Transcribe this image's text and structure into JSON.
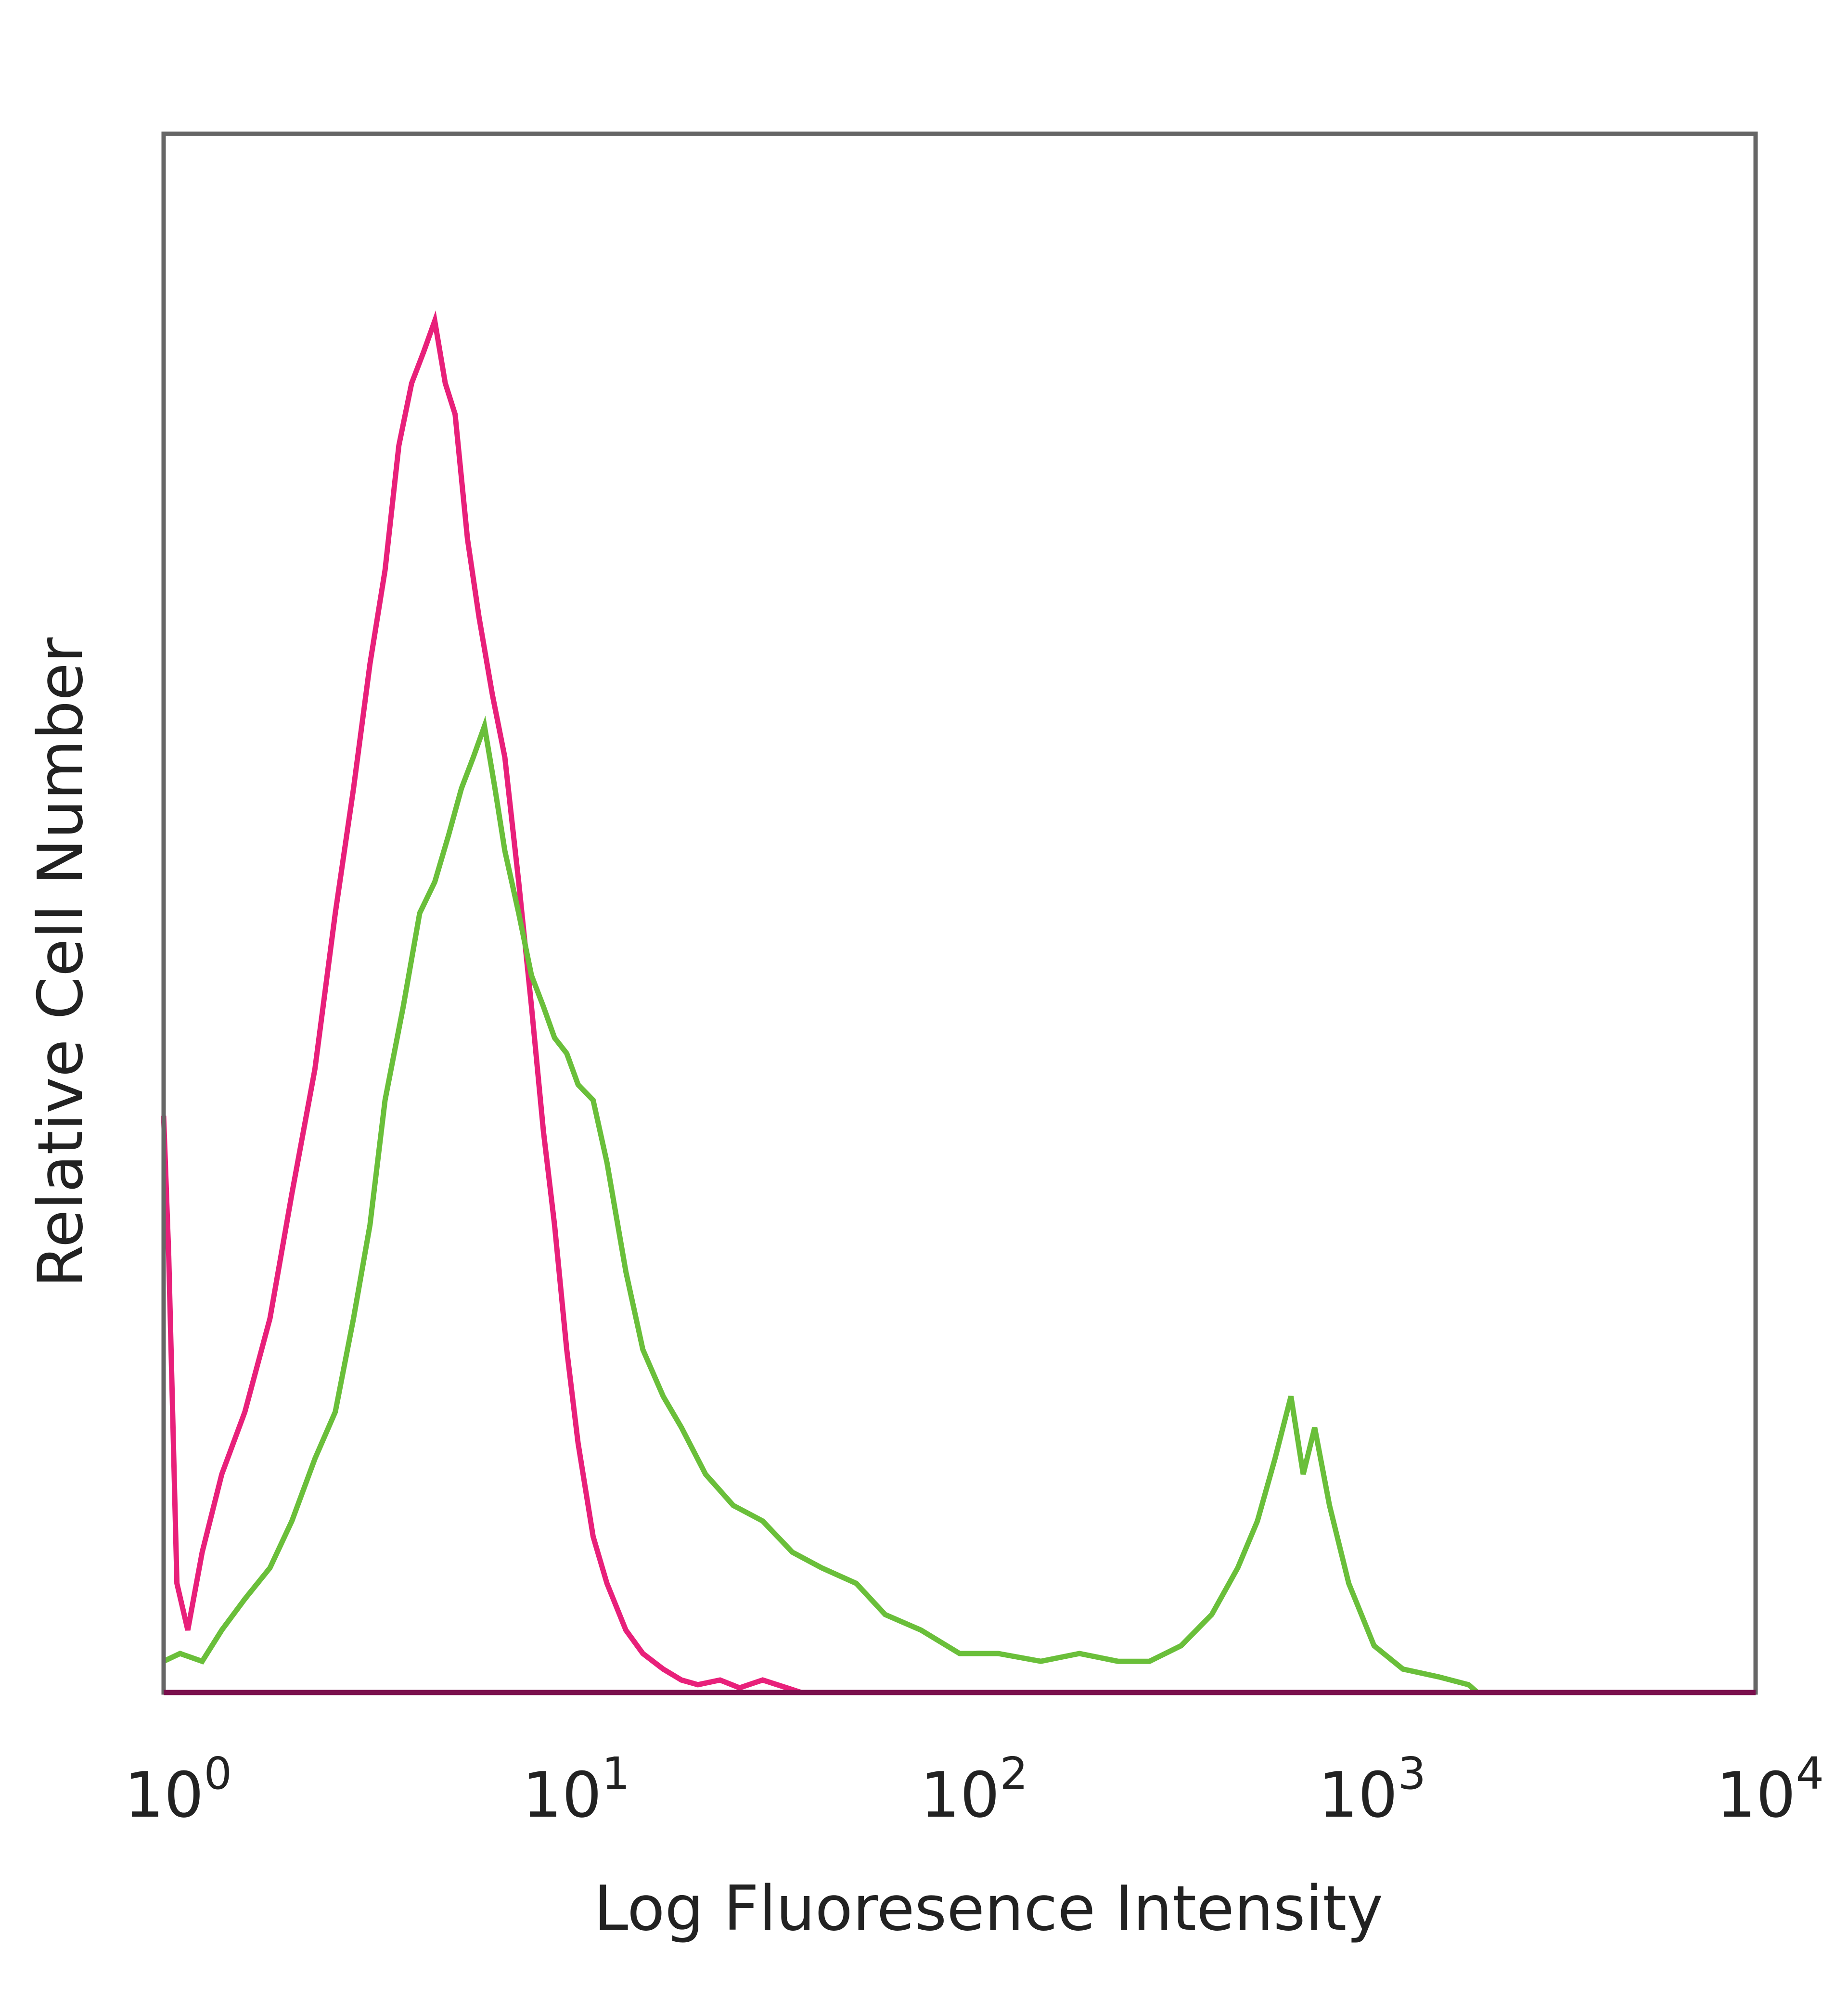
{
  "chart_data": {
    "type": "line",
    "title": "",
    "xlabel": "Log Fluoresence Intensity",
    "ylabel": "Relative Cell Number",
    "x_scale": "log",
    "xlim": [
      1,
      10000
    ],
    "ylim": [
      0,
      100
    ],
    "x_ticks": [
      {
        "value": 1,
        "base": "10",
        "exp": "0"
      },
      {
        "value": 10,
        "base": "10",
        "exp": "1"
      },
      {
        "value": 100,
        "base": "10",
        "exp": "2"
      },
      {
        "value": 1000,
        "base": "10",
        "exp": "3"
      },
      {
        "value": 10000,
        "base": "10",
        "exp": "4"
      }
    ],
    "grid": false,
    "legend": false,
    "series": [
      {
        "color": "#e8207a",
        "x": [
          1.0,
          1.03,
          1.08,
          1.15,
          1.25,
          1.4,
          1.6,
          1.85,
          2.1,
          2.4,
          2.7,
          3.0,
          3.3,
          3.6,
          3.9,
          4.2,
          4.5,
          4.8,
          5.1,
          5.4,
          5.8,
          6.2,
          6.7,
          7.2,
          7.8,
          8.4,
          9.0,
          9.6,
          10.3,
          11.0,
          12.0,
          13.0,
          14.5,
          16.0,
          18.0,
          20.0,
          22.0,
          25.0,
          28.0,
          32.0,
          40.0,
          100.0,
          1000.0,
          10000.0
        ],
        "y": [
          37,
          28,
          7,
          4,
          9,
          14,
          18,
          24,
          32,
          40,
          50,
          58,
          66,
          72,
          80,
          84,
          86,
          88,
          84,
          82,
          74,
          69,
          64,
          60,
          52,
          44,
          36,
          30,
          22,
          16,
          10,
          7,
          4,
          2.5,
          1.5,
          0.8,
          0.5,
          0.8,
          0.3,
          0.8,
          0,
          0,
          0,
          0
        ]
      },
      {
        "color": "#6abf3a",
        "x": [
          1.0,
          1.1,
          1.25,
          1.4,
          1.6,
          1.85,
          2.1,
          2.4,
          2.7,
          3.0,
          3.3,
          3.6,
          4.0,
          4.4,
          4.8,
          5.2,
          5.6,
          6.0,
          6.4,
          6.8,
          7.2,
          7.8,
          8.4,
          9.0,
          9.6,
          10.3,
          11.0,
          12.0,
          13.0,
          14.5,
          16.0,
          18.0,
          20.0,
          23.0,
          27.0,
          32.0,
          38.0,
          45.0,
          55.0,
          65.0,
          80.0,
          100.0,
          125.0,
          160.0,
          200.0,
          250.0,
          300.0,
          360.0,
          430.0,
          500.0,
          560.0,
          620.0,
          680.0,
          730.0,
          780.0,
          850.0,
          950.0,
          1100.0,
          1300.0,
          1600.0,
          1900.0,
          2000.0,
          10000.0
        ],
        "y": [
          2,
          2.5,
          2,
          4,
          6,
          8,
          11,
          15,
          18,
          24,
          30,
          38,
          44,
          50,
          52,
          55,
          58,
          60,
          62,
          58,
          54,
          50,
          46,
          44,
          42,
          41,
          39,
          38,
          34,
          27,
          22,
          19,
          17,
          14,
          12,
          11,
          9,
          8,
          7,
          5,
          4,
          2.5,
          2.5,
          2,
          2.5,
          2,
          2,
          3,
          5,
          8,
          11,
          15,
          19,
          14,
          17,
          12,
          7,
          3,
          1.5,
          1,
          0.5,
          0,
          0
        ]
      }
    ],
    "axis_color": "#666666",
    "baseline_color": "#7a0f4d"
  }
}
